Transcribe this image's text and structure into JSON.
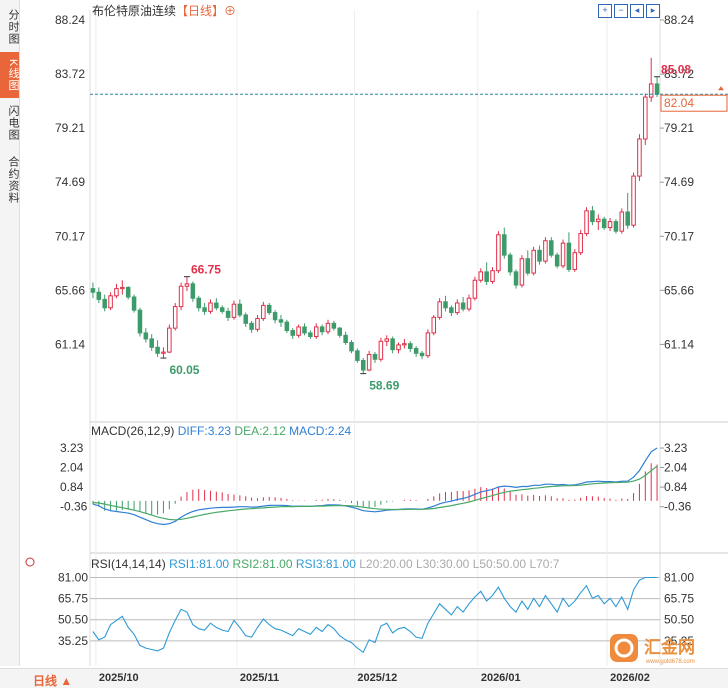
{
  "side_tabs": [
    {
      "label": "分时图",
      "active": false
    },
    {
      "label": "K线图",
      "active": true
    },
    {
      "label": "闪电图",
      "active": false
    },
    {
      "label": "合约资料",
      "active": false
    }
  ],
  "header": {
    "title": "布伦特原油连续",
    "period_tag": "【日线】",
    "plus": "⊕"
  },
  "toolbar_icons": [
    "zoom-in-icon",
    "zoom-out-icon",
    "move-left-icon",
    "move-right-icon"
  ],
  "period_selector": {
    "label": "日线 ▲"
  },
  "macd_legend": {
    "name": "MACD(26,12,9)",
    "diff": "DIFF:3.23",
    "dea": "DEA:2.12",
    "macd": "MACD:2.24"
  },
  "rsi_legend": {
    "name": "RSI(14,14,14)",
    "rsi1": "RSI1:81.00",
    "rsi2": "RSI2:81.00",
    "rsi3": "RSI3:81.00",
    "l20": "L20:20.00",
    "l30": "L30:30.00",
    "l50": "L50:50.00",
    "l70": "L70:7"
  },
  "colors": {
    "up": "#e0304a",
    "down": "#3d9b6a",
    "diff": "#2f7fd6",
    "dea": "#48a867",
    "accent": "#e8663a",
    "rsi": "#2f9ad6"
  },
  "logo": {
    "text": "汇金网",
    "sub": "www.gold678.com"
  },
  "chart_data": {
    "type": "candlestick",
    "price_axis": {
      "labels": [
        "88.24",
        "83.72",
        "79.21",
        "74.69",
        "70.17",
        "65.66",
        "61.14"
      ],
      "range": [
        58.0,
        88.24
      ]
    },
    "current_price": "82.04",
    "annotations": [
      {
        "text": "85.08",
        "kind": "high"
      },
      {
        "text": "66.75",
        "kind": "high"
      },
      {
        "text": "60.05",
        "kind": "low"
      },
      {
        "text": "58.69",
        "kind": "low"
      }
    ],
    "x_labels": [
      "2025/10",
      "2025/11",
      "2025/12",
      "2026/01",
      "2026/02"
    ],
    "x_label_index": [
      1,
      25,
      45,
      66,
      88
    ],
    "candles": [
      [
        65.8,
        66.3,
        65.0,
        65.5
      ],
      [
        65.5,
        65.9,
        64.6,
        64.9
      ],
      [
        64.9,
        65.3,
        63.9,
        64.2
      ],
      [
        64.2,
        65.5,
        64.0,
        65.2
      ],
      [
        65.2,
        66.2,
        65.0,
        65.8
      ],
      [
        65.8,
        66.5,
        65.3,
        65.9
      ],
      [
        65.9,
        66.0,
        64.9,
        65.1
      ],
      [
        65.1,
        65.3,
        63.8,
        64.0
      ],
      [
        64.0,
        64.2,
        61.8,
        62.1
      ],
      [
        62.1,
        62.5,
        61.3,
        61.6
      ],
      [
        61.6,
        62.0,
        60.6,
        60.9
      ],
      [
        60.9,
        61.5,
        60.1,
        60.4
      ],
      [
        60.4,
        60.9,
        60.0,
        60.5
      ],
      [
        60.5,
        62.8,
        60.4,
        62.5
      ],
      [
        62.5,
        64.6,
        62.3,
        64.3
      ],
      [
        64.3,
        66.3,
        64.0,
        66.0
      ],
      [
        66.0,
        66.8,
        65.6,
        66.2
      ],
      [
        66.2,
        66.4,
        64.7,
        65.0
      ],
      [
        65.0,
        65.2,
        63.9,
        64.2
      ],
      [
        64.2,
        64.6,
        63.6,
        63.9
      ],
      [
        63.9,
        64.9,
        63.7,
        64.6
      ],
      [
        64.6,
        65.0,
        64.0,
        64.2
      ],
      [
        64.2,
        64.4,
        63.7,
        63.9
      ],
      [
        63.9,
        64.2,
        63.1,
        63.4
      ],
      [
        63.4,
        64.8,
        63.2,
        64.5
      ],
      [
        64.5,
        64.9,
        63.4,
        63.6
      ],
      [
        63.6,
        63.8,
        62.6,
        62.9
      ],
      [
        62.9,
        63.1,
        62.1,
        62.4
      ],
      [
        62.4,
        63.6,
        62.2,
        63.3
      ],
      [
        63.3,
        64.7,
        63.1,
        64.4
      ],
      [
        64.4,
        64.6,
        63.6,
        63.8
      ],
      [
        63.8,
        64.0,
        62.9,
        63.2
      ],
      [
        63.2,
        63.6,
        62.6,
        63.0
      ],
      [
        63.0,
        63.2,
        62.1,
        62.3
      ],
      [
        62.3,
        62.5,
        61.6,
        61.9
      ],
      [
        61.9,
        62.8,
        61.7,
        62.6
      ],
      [
        62.6,
        62.9,
        61.9,
        62.1
      ],
      [
        62.1,
        62.3,
        61.6,
        61.8
      ],
      [
        61.8,
        62.9,
        61.6,
        62.6
      ],
      [
        62.6,
        62.8,
        61.9,
        62.2
      ],
      [
        62.2,
        63.2,
        62.0,
        62.9
      ],
      [
        62.9,
        63.1,
        62.3,
        62.5
      ],
      [
        62.5,
        62.6,
        61.7,
        61.9
      ],
      [
        61.9,
        62.2,
        61.1,
        61.3
      ],
      [
        61.3,
        61.5,
        60.4,
        60.6
      ],
      [
        60.6,
        60.8,
        59.6,
        59.8
      ],
      [
        59.8,
        60.0,
        58.7,
        59.0
      ],
      [
        59.0,
        60.6,
        58.9,
        60.3
      ],
      [
        60.3,
        60.5,
        59.6,
        59.9
      ],
      [
        59.9,
        61.7,
        59.7,
        61.4
      ],
      [
        61.4,
        61.9,
        61.0,
        61.6
      ],
      [
        61.6,
        61.8,
        60.4,
        60.7
      ],
      [
        60.7,
        61.3,
        60.4,
        61.1
      ],
      [
        61.1,
        61.6,
        60.8,
        61.2
      ],
      [
        61.2,
        61.4,
        60.5,
        60.8
      ],
      [
        60.8,
        61.0,
        60.1,
        60.4
      ],
      [
        60.4,
        60.6,
        59.9,
        60.2
      ],
      [
        60.2,
        62.4,
        60.0,
        62.1
      ],
      [
        62.1,
        63.6,
        61.9,
        63.4
      ],
      [
        63.4,
        65.0,
        63.2,
        64.7
      ],
      [
        64.7,
        65.2,
        63.9,
        64.2
      ],
      [
        64.2,
        64.4,
        63.5,
        63.8
      ],
      [
        63.8,
        64.9,
        63.6,
        64.6
      ],
      [
        64.6,
        65.1,
        63.9,
        64.1
      ],
      [
        64.1,
        65.3,
        63.9,
        65.0
      ],
      [
        65.0,
        66.8,
        64.8,
        66.5
      ],
      [
        66.5,
        67.5,
        66.3,
        67.2
      ],
      [
        67.2,
        68.0,
        66.1,
        66.4
      ],
      [
        66.4,
        67.6,
        66.2,
        67.3
      ],
      [
        67.3,
        70.6,
        67.1,
        70.3
      ],
      [
        70.3,
        70.9,
        68.3,
        68.6
      ],
      [
        68.6,
        68.8,
        66.9,
        67.2
      ],
      [
        67.2,
        67.4,
        65.8,
        66.1
      ],
      [
        66.1,
        68.6,
        65.9,
        68.3
      ],
      [
        68.3,
        69.0,
        66.9,
        67.1
      ],
      [
        67.1,
        69.3,
        66.9,
        69.0
      ],
      [
        69.0,
        69.4,
        67.8,
        68.1
      ],
      [
        68.1,
        70.1,
        67.9,
        69.8
      ],
      [
        69.8,
        70.1,
        68.4,
        68.6
      ],
      [
        68.6,
        68.8,
        67.5,
        67.7
      ],
      [
        67.7,
        69.9,
        67.5,
        69.6
      ],
      [
        69.6,
        70.5,
        67.2,
        67.4
      ],
      [
        67.4,
        69.1,
        67.2,
        68.8
      ],
      [
        68.8,
        70.7,
        68.6,
        70.4
      ],
      [
        70.4,
        72.6,
        70.2,
        72.3
      ],
      [
        72.3,
        72.7,
        71.1,
        71.4
      ],
      [
        71.4,
        72.0,
        70.7,
        71.6
      ],
      [
        71.6,
        71.8,
        70.7,
        70.9
      ],
      [
        70.9,
        71.7,
        70.6,
        71.4
      ],
      [
        71.4,
        71.6,
        70.4,
        70.6
      ],
      [
        70.6,
        72.5,
        70.4,
        72.2
      ],
      [
        72.2,
        73.8,
        70.8,
        71.1
      ],
      [
        71.1,
        75.5,
        70.9,
        75.2
      ],
      [
        75.2,
        78.7,
        74.8,
        78.3
      ],
      [
        78.3,
        82.1,
        77.8,
        81.8
      ],
      [
        81.8,
        85.08,
        81.4,
        82.9
      ],
      [
        82.9,
        83.5,
        81.8,
        82.04
      ]
    ],
    "macd": {
      "axis_labels": [
        "3.23",
        "2.04",
        "0.84",
        "-0.36"
      ],
      "range": [
        -1.6,
        3.6
      ],
      "diff": [
        -0.2,
        -0.3,
        -0.5,
        -0.6,
        -0.65,
        -0.7,
        -0.75,
        -0.85,
        -1.0,
        -1.15,
        -1.3,
        -1.4,
        -1.45,
        -1.4,
        -1.25,
        -1.0,
        -0.8,
        -0.65,
        -0.55,
        -0.5,
        -0.45,
        -0.42,
        -0.4,
        -0.4,
        -0.38,
        -0.36,
        -0.36,
        -0.38,
        -0.37,
        -0.32,
        -0.28,
        -0.27,
        -0.27,
        -0.29,
        -0.33,
        -0.33,
        -0.33,
        -0.34,
        -0.3,
        -0.29,
        -0.25,
        -0.24,
        -0.26,
        -0.31,
        -0.38,
        -0.48,
        -0.6,
        -0.64,
        -0.67,
        -0.63,
        -0.57,
        -0.55,
        -0.53,
        -0.5,
        -0.49,
        -0.5,
        -0.52,
        -0.44,
        -0.33,
        -0.18,
        -0.08,
        -0.02,
        0.08,
        0.15,
        0.25,
        0.4,
        0.55,
        0.62,
        0.7,
        0.85,
        0.9,
        0.88,
        0.82,
        0.88,
        0.88,
        0.95,
        0.95,
        1.02,
        1.02,
        0.98,
        1.0,
        0.96,
        0.98,
        1.05,
        1.15,
        1.18,
        1.2,
        1.18,
        1.18,
        1.15,
        1.2,
        1.2,
        1.45,
        1.85,
        2.45,
        3.0,
        3.23
      ],
      "dea": [
        -0.1,
        -0.13,
        -0.2,
        -0.28,
        -0.35,
        -0.42,
        -0.49,
        -0.57,
        -0.66,
        -0.76,
        -0.87,
        -0.98,
        -1.07,
        -1.14,
        -1.16,
        -1.13,
        -1.07,
        -0.99,
        -0.91,
        -0.83,
        -0.76,
        -0.7,
        -0.66,
        -0.61,
        -0.57,
        -0.53,
        -0.5,
        -0.48,
        -0.45,
        -0.43,
        -0.4,
        -0.38,
        -0.36,
        -0.35,
        -0.35,
        -0.34,
        -0.34,
        -0.34,
        -0.33,
        -0.32,
        -0.31,
        -0.29,
        -0.29,
        -0.29,
        -0.31,
        -0.34,
        -0.39,
        -0.44,
        -0.48,
        -0.51,
        -0.52,
        -0.53,
        -0.53,
        -0.53,
        -0.52,
        -0.52,
        -0.52,
        -0.5,
        -0.47,
        -0.41,
        -0.35,
        -0.29,
        -0.22,
        -0.15,
        -0.07,
        0.03,
        0.13,
        0.23,
        0.32,
        0.43,
        0.52,
        0.59,
        0.63,
        0.68,
        0.72,
        0.77,
        0.8,
        0.85,
        0.88,
        0.9,
        0.92,
        0.93,
        0.94,
        0.96,
        1.0,
        1.04,
        1.07,
        1.09,
        1.11,
        1.12,
        1.13,
        1.14,
        1.21,
        1.33,
        1.55,
        1.85,
        2.12
      ]
    },
    "rsi": {
      "axis_labels": [
        "81.00",
        "65.75",
        "50.50",
        "35.25"
      ],
      "range": [
        20,
        90
      ],
      "levels": [
        81,
        65.75,
        50.5,
        35.25
      ],
      "values": [
        42,
        36,
        38,
        47,
        50,
        53,
        45,
        40,
        32,
        30,
        29,
        28,
        30,
        41,
        50,
        58,
        56,
        47,
        44,
        43,
        48,
        45,
        43,
        42,
        50,
        45,
        39,
        38,
        45,
        51,
        47,
        44,
        43,
        41,
        39,
        44,
        42,
        40,
        45,
        42,
        47,
        44,
        39,
        36,
        34,
        30,
        27,
        36,
        34,
        46,
        48,
        41,
        44,
        45,
        42,
        38,
        37,
        48,
        55,
        62,
        58,
        54,
        60,
        56,
        62,
        67,
        71,
        64,
        68,
        74,
        66,
        60,
        56,
        64,
        58,
        66,
        60,
        68,
        62,
        56,
        66,
        60,
        64,
        70,
        75,
        66,
        68,
        62,
        66,
        60,
        67,
        58,
        72,
        79,
        81,
        81,
        81
      ]
    }
  }
}
